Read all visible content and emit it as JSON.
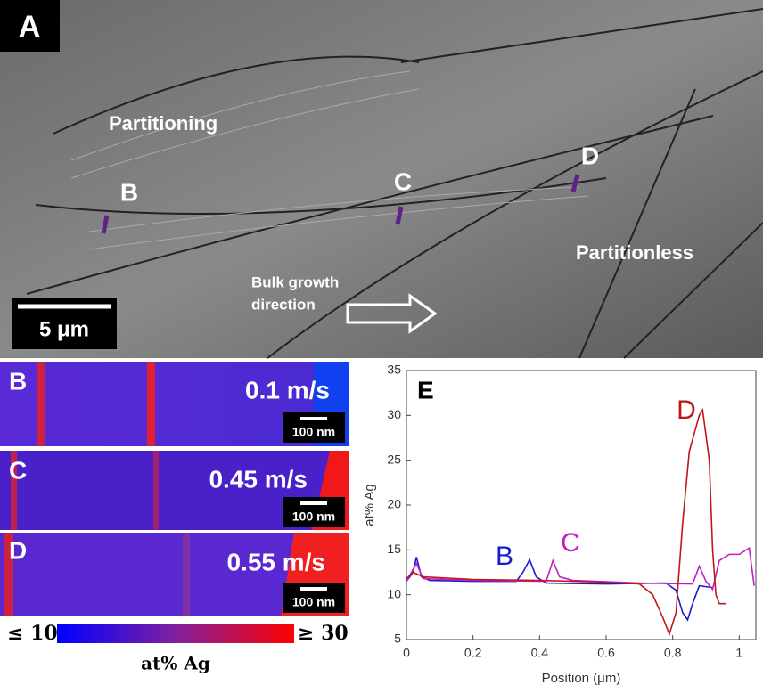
{
  "panel_a": {
    "label": "A",
    "partitioning": "Partitioning",
    "partitionless": "Partitionless",
    "point_b": "B",
    "point_c": "C",
    "point_d": "D",
    "growth_line1": "Bulk growth",
    "growth_line2": "direction",
    "scale_bar": "5 μm"
  },
  "maps": [
    {
      "label": "B",
      "speed": "0.1 m/s",
      "scale_bar": "100 nm"
    },
    {
      "label": "C",
      "speed": "0.45 m/s",
      "scale_bar": "100 nm"
    },
    {
      "label": "D",
      "speed": "0.55 m/s",
      "scale_bar": "100 nm"
    }
  ],
  "colorbar": {
    "min_label": "≤ 10",
    "max_label": "≥ 30",
    "title": "at% Ag"
  },
  "chart_data": {
    "type": "line",
    "panel_label": "E",
    "x_label": "Position (μm)",
    "y_label": "at% Ag",
    "xlim": [
      0,
      1.05
    ],
    "xticks": [
      0,
      0.2,
      0.4,
      0.6,
      0.8,
      1
    ],
    "ylim": [
      5,
      35
    ],
    "yticks": [
      5,
      10,
      15,
      20,
      25,
      30,
      35
    ],
    "series": [
      {
        "name": "B",
        "color": "#1a1ad0",
        "x": [
          0,
          0.02,
          0.03,
          0.045,
          0.07,
          0.2,
          0.33,
          0.35,
          0.37,
          0.39,
          0.42,
          0.6,
          0.78,
          0.81,
          0.83,
          0.845,
          0.86,
          0.88,
          0.92
        ],
        "values": [
          11.5,
          12.5,
          14.2,
          12,
          11.6,
          11.5,
          11.5,
          12.5,
          13.9,
          12,
          11.3,
          11.2,
          11.3,
          10.5,
          8,
          7.2,
          9,
          11,
          10.8
        ]
      },
      {
        "name": "C",
        "color": "#c020c0",
        "x": [
          0,
          0.03,
          0.05,
          0.2,
          0.42,
          0.44,
          0.46,
          0.5,
          0.7,
          0.86,
          0.88,
          0.9,
          0.92,
          0.94,
          0.97,
          1.0,
          1.03,
          1.045
        ],
        "values": [
          11.5,
          13.5,
          11.8,
          11.6,
          11.5,
          13.8,
          12,
          11.6,
          11.3,
          11.2,
          13.2,
          11.5,
          10.6,
          13.8,
          14.5,
          14.5,
          15.2,
          11
        ]
      },
      {
        "name": "D",
        "color": "#c01818",
        "x": [
          0,
          0.02,
          0.05,
          0.2,
          0.4,
          0.6,
          0.7,
          0.74,
          0.77,
          0.79,
          0.81,
          0.83,
          0.85,
          0.88,
          0.89,
          0.91,
          0.92,
          0.93,
          0.94,
          0.96
        ],
        "values": [
          11.8,
          12.5,
          12,
          11.7,
          11.6,
          11.4,
          11.2,
          10,
          7.5,
          5.6,
          8,
          18,
          26,
          30,
          30.6,
          25,
          15,
          10,
          9,
          9
        ]
      }
    ]
  }
}
